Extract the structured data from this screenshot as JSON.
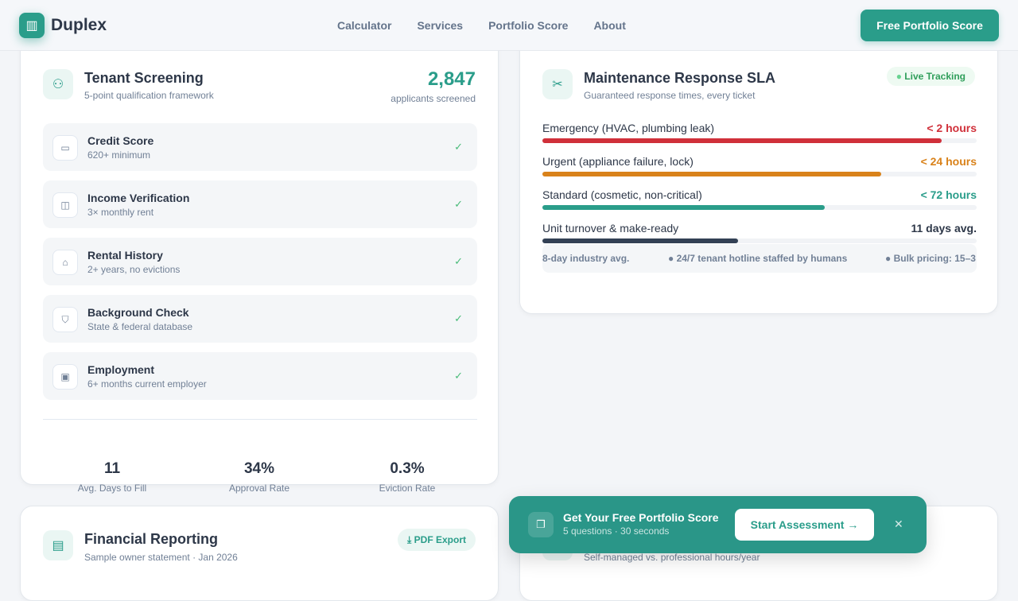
{
  "nav": {
    "brand": "Duplex",
    "links": [
      "Calculator",
      "Services",
      "Portfolio Score",
      "About"
    ],
    "cta": "Free Portfolio Score"
  },
  "screening": {
    "title": "Tenant Screening",
    "subtitle": "5-point qualification framework",
    "count": "2,847",
    "count_label": "applicants screened",
    "criteria": [
      {
        "title": "Credit Score",
        "desc": "620+ minimum",
        "icon": "credit-card-icon"
      },
      {
        "title": "Income Verification",
        "desc": "3× monthly rent",
        "icon": "cash-icon"
      },
      {
        "title": "Rental History",
        "desc": "2+ years, no evictions",
        "icon": "home-icon"
      },
      {
        "title": "Background Check",
        "desc": "State & federal database",
        "icon": "shield-icon"
      },
      {
        "title": "Employment",
        "desc": "6+ months current employer",
        "icon": "briefcase-icon"
      }
    ],
    "stats": [
      {
        "value": "11",
        "label": "Avg. Days to Fill"
      },
      {
        "value": "34%",
        "label": "Approval Rate"
      },
      {
        "value": "0.3%",
        "label": "Eviction Rate"
      }
    ]
  },
  "sla": {
    "title": "Maintenance Response SLA",
    "subtitle": "Guaranteed response times, every ticket",
    "badge": "Live Tracking",
    "rows": [
      {
        "label": "Emergency (HVAC, plumbing leak)",
        "value": "< 2 hours",
        "fill_pct": 92,
        "color": "#d0303a"
      },
      {
        "label": "Urgent (appliance failure, lock)",
        "value": "< 24 hours",
        "fill_pct": 78,
        "color": "#d9821a"
      },
      {
        "label": "Standard (cosmetic, non-critical)",
        "value": "< 72 hours",
        "fill_pct": 65,
        "color": "#2a9d8a"
      },
      {
        "label": "Unit turnover & make-ready",
        "value": "11 days avg.",
        "fill_pct": 45,
        "color": "#334155"
      }
    ],
    "footer": [
      "8-day industry avg.",
      "● 24/7 tenant hotline staffed by humans",
      "● Bulk pricing: 15–3"
    ]
  },
  "financial": {
    "title": "Financial Reporting",
    "subtitle": "Sample owner statement · Jan 2026",
    "export": "PDF Export"
  },
  "hours": {
    "subtitle": "Self-managed vs. professional hours/year"
  },
  "toast": {
    "title": "Get Your Free Portfolio Score",
    "subtitle": "5 questions · 30 seconds",
    "button": "Start Assessment →",
    "close": "✕"
  }
}
